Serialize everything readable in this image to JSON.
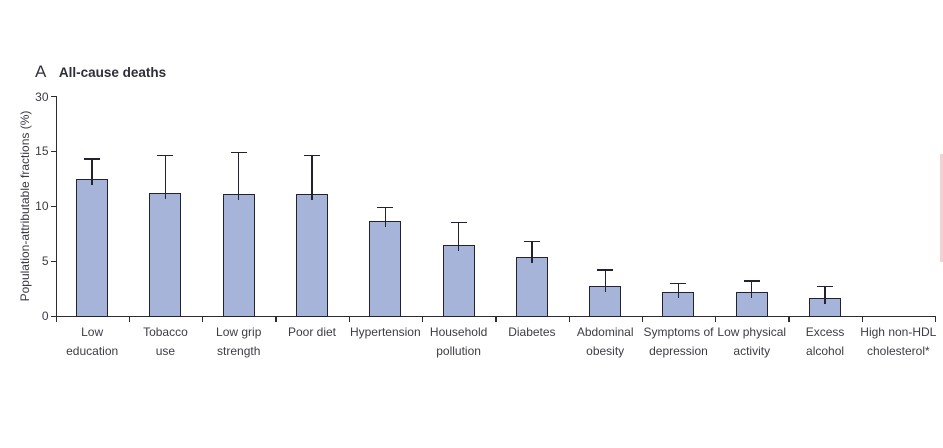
{
  "panel": {
    "letter": "A",
    "title": "All-cause deaths"
  },
  "chart_data": {
    "type": "bar",
    "title": "A: All-cause deaths",
    "ylabel": "Population-attributable fractions (%)",
    "xlabel": "",
    "y_ticks": [
      0,
      5,
      10,
      15,
      30
    ],
    "y_axis_note": "scale compressed above 15: the 15-30 segment occupies the same length as one 5-unit step",
    "grid": false,
    "legend": "none",
    "bar_color": "#a6b4da",
    "bar_border_color": "#23232f",
    "axis_color": "#2c2c34",
    "categories": [
      "Low education",
      "Tobacco use",
      "Low grip strength",
      "Poor diet",
      "Hypertension",
      "Household pollution",
      "Diabetes",
      "Abdominal obesity",
      "Symptoms of depression",
      "Low physical activity",
      "Excess alcohol",
      "High non-HDL cholesterol*"
    ],
    "category_label_lines": [
      [
        "Low",
        "education"
      ],
      [
        "Tobacco",
        "use"
      ],
      [
        "Low grip",
        "strength"
      ],
      [
        "Poor diet"
      ],
      [
        "Hypertension"
      ],
      [
        "Household",
        "pollution"
      ],
      [
        "Diabetes"
      ],
      [
        "Abdominal",
        "obesity"
      ],
      [
        "Symptoms of",
        "depression"
      ],
      [
        "Low physical",
        "activity"
      ],
      [
        "Excess",
        "alcohol"
      ],
      [
        "High non-HDL",
        "cholesterol*"
      ]
    ],
    "values": [
      12.4,
      11.2,
      11.1,
      11.1,
      8.6,
      6.4,
      5.3,
      2.7,
      2.1,
      2.1,
      1.6,
      0
    ],
    "ci_upper": [
      14.3,
      14.6,
      14.9,
      14.6,
      9.9,
      8.5,
      6.8,
      4.2,
      3.0,
      3.2,
      2.7,
      null
    ]
  },
  "decor": {
    "right_edge_cropped_bar_color": "#f3d2d5"
  }
}
